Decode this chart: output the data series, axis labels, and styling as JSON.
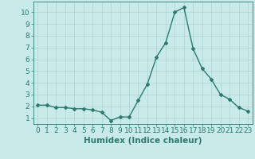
{
  "x": [
    0,
    1,
    2,
    3,
    4,
    5,
    6,
    7,
    8,
    9,
    10,
    11,
    12,
    13,
    14,
    15,
    16,
    17,
    18,
    19,
    20,
    21,
    22,
    23
  ],
  "y": [
    2.1,
    2.1,
    1.9,
    1.9,
    1.8,
    1.8,
    1.7,
    1.5,
    0.8,
    1.1,
    1.1,
    2.5,
    3.9,
    6.2,
    7.4,
    10.0,
    10.4,
    6.9,
    5.2,
    4.3,
    3.0,
    2.6,
    1.9,
    1.6
  ],
  "line_color": "#2d7a6e",
  "bg_color": "#c8eae8",
  "grid_color": "#aed4d0",
  "xlabel": "Humidex (Indice chaleur)",
  "ylim": [
    0.5,
    10.9
  ],
  "xlim": [
    -0.5,
    23.5
  ],
  "yticks": [
    1,
    2,
    3,
    4,
    5,
    6,
    7,
    8,
    9,
    10
  ],
  "xticks": [
    0,
    1,
    2,
    3,
    4,
    5,
    6,
    7,
    8,
    9,
    10,
    11,
    12,
    13,
    14,
    15,
    16,
    17,
    18,
    19,
    20,
    21,
    22,
    23
  ],
  "xlabel_fontsize": 7.5,
  "tick_fontsize": 6.5,
  "marker": "D",
  "marker_size": 2.0,
  "linewidth": 1.0
}
